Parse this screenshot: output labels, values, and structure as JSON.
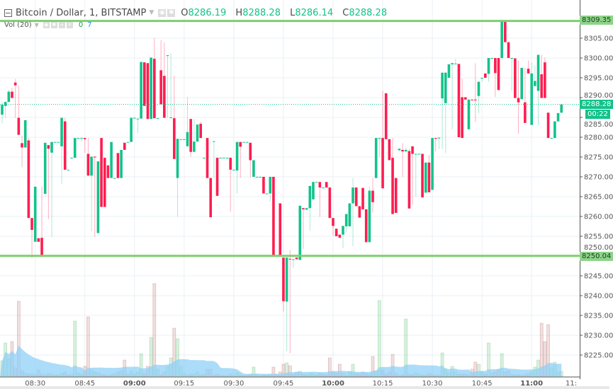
{
  "legend": {
    "symbol": "Bitcoin / Dollar, 1, BITSTAMP",
    "open_label": "O",
    "open": "8286.19",
    "high_label": "H",
    "high": "8288.28",
    "low_label": "L",
    "low": "8286.14",
    "close_label": "C",
    "close": "8288.28",
    "icons": [
      "collapse-icon",
      "caret-down-icon",
      "eye-icon",
      "gear-icon"
    ]
  },
  "volume_legend": {
    "label": "Vol (20)",
    "value_1": "0",
    "value_2": "7",
    "icons": [
      "caret-down-icon",
      "eye-icon",
      "gear-icon",
      "plus-icon",
      "close-icon"
    ]
  },
  "badges": {
    "resistance": "8309.35",
    "current_price": "8288.28",
    "countdown": "00:22",
    "support": "8250.04"
  },
  "colors": {
    "up": "#13c28a",
    "down": "#fe1d50",
    "level_line": "#7dcf6f",
    "current_line": "#13c28a",
    "volume_ma": "#8fd0f7",
    "grid": "#eaf0f4"
  },
  "chart_data": {
    "type": "candlestick",
    "interval": "1 minute",
    "start_time": "08:20",
    "ylim": [
      8220,
      8314
    ],
    "y_ticks": [
      "8305.00",
      "8300.00",
      "8295.00",
      "8290.00",
      "8285.00",
      "8280.00",
      "8275.00",
      "8270.00",
      "8265.00",
      "8260.00",
      "8255.00",
      "8250.00",
      "8245.00",
      "8240.00",
      "8235.00",
      "8230.00",
      "8225.00"
    ],
    "x_ticks": [
      {
        "label": "08:30",
        "time": "08:30",
        "bold": false
      },
      {
        "label": "08:45",
        "time": "08:45",
        "bold": false
      },
      {
        "label": "09:00",
        "time": "09:00",
        "bold": true
      },
      {
        "label": "09:15",
        "time": "09:15",
        "bold": false
      },
      {
        "label": "09:30",
        "time": "09:30",
        "bold": false
      },
      {
        "label": "09:45",
        "time": "09:45",
        "bold": false
      },
      {
        "label": "10:00",
        "time": "10:00",
        "bold": true
      },
      {
        "label": "10:15",
        "time": "10:15",
        "bold": false
      },
      {
        "label": "10:30",
        "time": "10:30",
        "bold": false
      },
      {
        "label": "10:45",
        "time": "10:45",
        "bold": false
      },
      {
        "label": "11:00",
        "time": "11:00",
        "bold": true
      },
      {
        "label": "11:",
        "time": "11:15",
        "bold": false
      }
    ],
    "horizontal_levels": [
      8309.35,
      8250.04
    ],
    "current_price": 8288.28,
    "candles_ohlc": [
      [
        8285.7,
        8289.0,
        8283.5,
        8288.2
      ],
      [
        8287.9,
        8289.2,
        8284.9,
        8288.9
      ],
      [
        8288.9,
        8292.0,
        8288.9,
        8291.5
      ],
      [
        8291.5,
        8292.5,
        8289.9,
        8289.9
      ],
      [
        8293.8,
        8294.7,
        8284.9,
        8293.1
      ],
      [
        8284.9,
        8293.0,
        8280.6,
        8280.6
      ],
      [
        8278.5,
        8280.4,
        8272.4,
        8277.4
      ],
      [
        8277.4,
        8284.3,
        8277.4,
        8284.3
      ],
      [
        8279.2,
        8279.8,
        8259.6,
        8259.6
      ],
      [
        8259.6,
        8259.6,
        8249.5,
        8256.6
      ],
      [
        8253.6,
        8267.5,
        8253.6,
        8267.5
      ],
      [
        8254.5,
        8254.5,
        8253.6,
        8253.6
      ],
      [
        8254.6,
        8267.6,
        8249.9,
        8249.9
      ],
      [
        8265.7,
        8278.6,
        8265.7,
        8278.6
      ],
      [
        8278.0,
        8278.0,
        8259.3,
        8277.1
      ],
      [
        8276.1,
        8278.8,
        8254.8,
        8278.8
      ],
      [
        8278.8,
        8278.8,
        8278.8,
        8278.8
      ],
      [
        8278.8,
        8278.8,
        8278.8,
        8278.8
      ],
      [
        8277.7,
        8284.9,
        8268.2,
        8284.9
      ],
      [
        8284.0,
        8284.9,
        8271.8,
        8271.8
      ],
      [
        8271.8,
        8271.8,
        8271.8,
        8271.8
      ],
      [
        8274.8,
        8274.8,
        8274.8,
        8274.8
      ],
      [
        8274.8,
        8279.8,
        8274.8,
        8279.8
      ],
      [
        8279.8,
        8279.8,
        8279.8,
        8279.8
      ],
      [
        8279.8,
        8279.8,
        8278.9,
        8279.8
      ],
      [
        8279.8,
        8279.8,
        8276.0,
        8279.5
      ],
      [
        8275.8,
        8279.8,
        8270.3,
        8270.3
      ],
      [
        8270.3,
        8275.1,
        8256.3,
        8275.1
      ],
      [
        8275.1,
        8275.1,
        8254.8,
        8274.9
      ],
      [
        8255.8,
        8273.9,
        8255.8,
        8273.9
      ],
      [
        8279.8,
        8279.8,
        8262.4,
        8262.4
      ],
      [
        8274.8,
        8274.8,
        8262.4,
        8262.4
      ],
      [
        8272.9,
        8272.9,
        8269.7,
        8269.7
      ],
      [
        8269.7,
        8278.8,
        8269.7,
        8278.8
      ],
      [
        8269.7,
        8269.7,
        8269.7,
        8269.7
      ],
      [
        8276.0,
        8276.0,
        8269.7,
        8269.7
      ],
      [
        8269.7,
        8276.8,
        8269.7,
        8276.8
      ],
      [
        8278.6,
        8278.6,
        8276.8,
        8276.8
      ],
      [
        8278.8,
        8278.8,
        8278.8,
        8278.8
      ],
      [
        8278.8,
        8284.9,
        8278.8,
        8284.9
      ],
      [
        8284.9,
        8284.9,
        8284.9,
        8284.9
      ],
      [
        8284.7,
        8284.7,
        8281.0,
        8284.7
      ],
      [
        8284.7,
        8299.0,
        8284.7,
        8299.0
      ],
      [
        8298.9,
        8298.9,
        8287.9,
        8287.9
      ],
      [
        8298.7,
        8298.7,
        8284.6,
        8284.6
      ],
      [
        8284.6,
        8300.1,
        8284.6,
        8300.1
      ],
      [
        8299.8,
        8305.1,
        8284.8,
        8284.8
      ],
      [
        8284.8,
        8284.8,
        8284.8,
        8284.8
      ],
      [
        8296.9,
        8304.5,
        8288.3,
        8288.3
      ],
      [
        8295.5,
        8303.9,
        8284.9,
        8284.9
      ],
      [
        8300.5,
        8300.7,
        8284.9,
        8300.7
      ],
      [
        8285.0,
        8301.1,
        8285.0,
        8285.0
      ],
      [
        8284.8,
        8295.6,
        8274.5,
        8274.5
      ],
      [
        8269.7,
        8279.6,
        8259.9,
        8279.6
      ],
      [
        8279.5,
        8279.5,
        8279.5,
        8279.5
      ],
      [
        8279.5,
        8279.5,
        8279.5,
        8279.5
      ],
      [
        8277.7,
        8290.2,
        8277.7,
        8281.3
      ],
      [
        8284.6,
        8284.6,
        8275.1,
        8276.3
      ],
      [
        8276.3,
        8284.6,
        8276.3,
        8278.9
      ],
      [
        8278.9,
        8283.2,
        8278.9,
        8283.2
      ],
      [
        8283.4,
        8284.0,
        8279.8,
        8279.8
      ],
      [
        8274.8,
        8274.8,
        8274.8,
        8274.8
      ],
      [
        8279.8,
        8279.8,
        8269.7,
        8269.7
      ],
      [
        8269.7,
        8269.7,
        8259.8,
        8259.8
      ],
      [
        8279.0,
        8279.0,
        8269.7,
        8279.0
      ],
      [
        8274.8,
        8274.8,
        8265.2,
        8265.2
      ],
      [
        8274.8,
        8274.8,
        8274.8,
        8274.8
      ],
      [
        8274.8,
        8274.8,
        8274.8,
        8274.8
      ],
      [
        8274.8,
        8274.8,
        8274.8,
        8274.8
      ],
      [
        8274.8,
        8274.8,
        8261.2,
        8271.8
      ],
      [
        8271.8,
        8271.8,
        8271.8,
        8271.8
      ],
      [
        8271.6,
        8278.8,
        8265.8,
        8278.8
      ],
      [
        8278.8,
        8278.8,
        8269.7,
        8277.6
      ],
      [
        8278.8,
        8278.8,
        8278.8,
        8278.8
      ],
      [
        8278.8,
        8278.8,
        8278.8,
        8278.8
      ],
      [
        8278.6,
        8278.6,
        8269.8,
        8274.2
      ],
      [
        8270.0,
        8274.2,
        8270.0,
        8274.2
      ],
      [
        8270.0,
        8270.0,
        8270.0,
        8270.0
      ],
      [
        8270.0,
        8270.0,
        8270.0,
        8270.0
      ],
      [
        8270.0,
        8270.0,
        8265.8,
        8265.8
      ],
      [
        8265.8,
        8265.8,
        8265.8,
        8265.8
      ],
      [
        8265.8,
        8270.0,
        8263.8,
        8270.0
      ],
      [
        8270.0,
        8270.0,
        8250.2,
        8250.2
      ],
      [
        8250.2,
        8250.2,
        8250.2,
        8250.2
      ],
      [
        8263.3,
        8263.3,
        8250.2,
        8250.2
      ],
      [
        8249.6,
        8249.6,
        8236.0,
        8238.6
      ],
      [
        8238.5,
        8249.6,
        8226.0,
        8249.6
      ],
      [
        8249.3,
        8251.5,
        8225.5,
        8249.2
      ],
      [
        8249.2,
        8249.2,
        8247.0,
        8249.2
      ],
      [
        8249.6,
        8249.6,
        8249.2,
        8249.2
      ],
      [
        8249.0,
        8262.7,
        8249.0,
        8262.7
      ],
      [
        8262.1,
        8262.1,
        8251.8,
        8261.8
      ],
      [
        8261.7,
        8262.1,
        8261.7,
        8262.1
      ],
      [
        8262.1,
        8267.7,
        8256.4,
        8267.7
      ],
      [
        8264.3,
        8268.7,
        8264.3,
        8268.7
      ],
      [
        8268.7,
        8268.7,
        8268.7,
        8268.7
      ],
      [
        8268.7,
        8268.7,
        8259.9,
        8267.3
      ],
      [
        8267.3,
        8267.3,
        8267.3,
        8267.3
      ],
      [
        8268.7,
        8268.7,
        8267.3,
        8267.3
      ],
      [
        8267.3,
        8267.3,
        8259.6,
        8259.6
      ],
      [
        8259.6,
        8259.6,
        8255.1,
        8257.6
      ],
      [
        8256.9,
        8256.9,
        8255.0,
        8255.0
      ],
      [
        8255.4,
        8255.4,
        8254.6,
        8254.6
      ],
      [
        8255.4,
        8257.6,
        8252.0,
        8257.6
      ],
      [
        8257.5,
        8260.6,
        8256.0,
        8260.6
      ],
      [
        8257.5,
        8263.3,
        8257.5,
        8263.3
      ],
      [
        8263.3,
        8269.7,
        8252.5,
        8267.3
      ],
      [
        8267.3,
        8267.3,
        8262.6,
        8262.6
      ],
      [
        8262.6,
        8262.6,
        8259.7,
        8259.7
      ],
      [
        8267.2,
        8267.2,
        8261.8,
        8261.8
      ],
      [
        8261.8,
        8261.8,
        8253.5,
        8253.5
      ],
      [
        8253.5,
        8267.5,
        8253.5,
        8266.5
      ],
      [
        8266.5,
        8269.7,
        8261.0,
        8263.6
      ],
      [
        8269.7,
        8279.8,
        8269.7,
        8279.8
      ],
      [
        8279.8,
        8279.8,
        8275.0,
        8279.8
      ],
      [
        8279.8,
        8291.7,
        8267.1,
        8267.1
      ],
      [
        8291.1,
        8291.1,
        8279.5,
        8279.5
      ],
      [
        8279.5,
        8279.5,
        8274.2,
        8274.2
      ],
      [
        8274.8,
        8279.8,
        8260.6,
        8260.6
      ],
      [
        8269.7,
        8269.7,
        8260.9,
        8260.9
      ],
      [
        8276.7,
        8277.1,
        8276.7,
        8277.1
      ],
      [
        8276.8,
        8278.5,
        8270.0,
        8276.4
      ],
      [
        8276.4,
        8277.5,
        8276.4,
        8276.8
      ],
      [
        8276.5,
        8277.0,
        8262.0,
        8262.0
      ],
      [
        8277.7,
        8277.7,
        8263.0,
        8275.8
      ],
      [
        8275.8,
        8275.8,
        8265.0,
        8275.8
      ],
      [
        8275.8,
        8275.8,
        8275.8,
        8275.8
      ],
      [
        8275.8,
        8275.8,
        8264.8,
        8264.8
      ],
      [
        8266.0,
        8273.6,
        8266.0,
        8273.6
      ],
      [
        8273.6,
        8275.5,
        8266.1,
        8266.1
      ],
      [
        8266.7,
        8279.8,
        8266.7,
        8279.8
      ],
      [
        8279.8,
        8279.8,
        8276.5,
        8279.6
      ],
      [
        8279.7,
        8279.9,
        8277.0,
        8279.9
      ],
      [
        8289.8,
        8296.3,
        8277.0,
        8296.3
      ],
      [
        8288.6,
        8296.3,
        8276.0,
        8296.3
      ],
      [
        8295.0,
        8298.4,
        8295.0,
        8298.4
      ],
      [
        8298.4,
        8298.7,
        8282.0,
        8298.7
      ],
      [
        8298.6,
        8299.8,
        8298.6,
        8298.6
      ],
      [
        8298.5,
        8298.5,
        8280.0,
        8280.0
      ],
      [
        8290.1,
        8294.8,
        8279.8,
        8279.8
      ],
      [
        8290.1,
        8290.1,
        8289.5,
        8289.5
      ],
      [
        8282.0,
        8289.5,
        8282.0,
        8289.5
      ],
      [
        8289.5,
        8289.5,
        8289.3,
        8289.3
      ],
      [
        8289.5,
        8298.7,
        8283.9,
        8289.3
      ],
      [
        8290.4,
        8294.0,
        8286.0,
        8294.0
      ],
      [
        8295.0,
        8295.0,
        8294.0,
        8295.0
      ],
      [
        8296.1,
        8296.1,
        8295.0,
        8295.0
      ],
      [
        8296.0,
        8300.0,
        8294.0,
        8300.0
      ],
      [
        8300.0,
        8300.0,
        8300.0,
        8300.0
      ],
      [
        8300.0,
        8300.0,
        8290.2,
        8296.2
      ],
      [
        8300.0,
        8300.0,
        8291.9,
        8291.9
      ],
      [
        8300.0,
        8309.3,
        8299.5,
        8309.3
      ],
      [
        8309.3,
        8309.3,
        8304.0,
        8304.0
      ],
      [
        8304.0,
        8304.0,
        8300.0,
        8300.0
      ],
      [
        8300.0,
        8300.0,
        8291.6,
        8300.0
      ],
      [
        8299.9,
        8299.9,
        8289.9,
        8289.9
      ],
      [
        8289.9,
        8299.4,
        8280.9,
        8288.8
      ],
      [
        8289.6,
        8297.5,
        8289.6,
        8297.5
      ],
      [
        8288.8,
        8297.5,
        8283.6,
        8283.6
      ],
      [
        8297.3,
        8299.4,
        8296.1,
        8296.1
      ],
      [
        8283.1,
        8298.8,
        8283.1,
        8296.1
      ],
      [
        8292.9,
        8298.1,
        8292.9,
        8294.2
      ],
      [
        8291.7,
        8300.8,
        8283.0,
        8300.8
      ],
      [
        8295.9,
        8300.8,
        8289.9,
        8289.9
      ],
      [
        8298.9,
        8300.1,
        8289.9,
        8289.9
      ],
      [
        8286.2,
        8286.2,
        8279.8,
        8279.8
      ],
      [
        8279.8,
        8279.8,
        8279.8,
        8279.8
      ],
      [
        8279.8,
        8284.0,
        8279.8,
        8284.0
      ],
      [
        8284.0,
        8286.1,
        8284.0,
        8286.1
      ],
      [
        8286.19,
        8288.28,
        8286.14,
        8288.28
      ]
    ],
    "volume": [
      22,
      47,
      25,
      49,
      12,
      106,
      8,
      5,
      3,
      3,
      2,
      9,
      3,
      2,
      4,
      3,
      2,
      2,
      4,
      6,
      2,
      3,
      78,
      5,
      3,
      14,
      84,
      9,
      6,
      5,
      3,
      2,
      1,
      2,
      4,
      6,
      8,
      23,
      3,
      7,
      3,
      6,
      32,
      4,
      14,
      55,
      131,
      10,
      2,
      6,
      14,
      26,
      68,
      53,
      14,
      4,
      2,
      3,
      3,
      6,
      2,
      3,
      10,
      10,
      2,
      3,
      1,
      1,
      1,
      3,
      1,
      5,
      2,
      1,
      2,
      3,
      13,
      2,
      1,
      2,
      2,
      3,
      13,
      3,
      6,
      17,
      19,
      15,
      3,
      6,
      7,
      3,
      2,
      4,
      3,
      2,
      4,
      3,
      2,
      26,
      6,
      4,
      17,
      4,
      1,
      7,
      17,
      4,
      3,
      6,
      4,
      3,
      28,
      8,
      107,
      9,
      3,
      6,
      31,
      4,
      1,
      2,
      81,
      3,
      2,
      5,
      3,
      2,
      2,
      4,
      3,
      1,
      2,
      33,
      11,
      5,
      14,
      6,
      3,
      3,
      3,
      2,
      10,
      20,
      17,
      7,
      3,
      47,
      5,
      6,
      10,
      32,
      6,
      8,
      3,
      2,
      2,
      1,
      2,
      4,
      6,
      13,
      23,
      75,
      49,
      73,
      12,
      20,
      6,
      7
    ],
    "volume_ma_length": 20
  }
}
